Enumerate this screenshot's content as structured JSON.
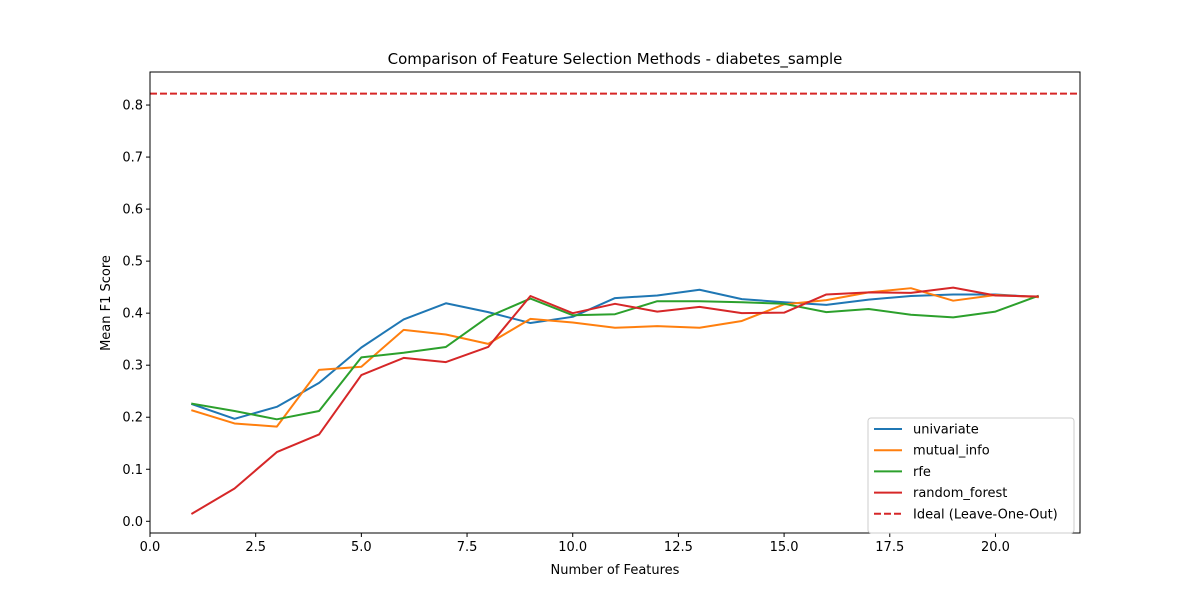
{
  "chart_data": {
    "type": "line",
    "title": "Comparison of Feature Selection Methods - diabetes_sample",
    "xlabel": "Number of Features",
    "ylabel": "Mean F1 Score",
    "xlim": [
      0.0,
      22.0
    ],
    "ylim": [
      -0.0225,
      0.8635
    ],
    "xticks": [
      0.0,
      2.5,
      5.0,
      7.5,
      10.0,
      12.5,
      15.0,
      17.5,
      20.0
    ],
    "xtick_labels": [
      "0.0",
      "2.5",
      "5.0",
      "7.5",
      "10.0",
      "12.5",
      "15.0",
      "17.5",
      "20.0"
    ],
    "yticks": [
      0.0,
      0.1,
      0.2,
      0.3,
      0.4,
      0.5,
      0.6,
      0.7,
      0.8
    ],
    "ytick_labels": [
      "0.0",
      "0.1",
      "0.2",
      "0.3",
      "0.4",
      "0.5",
      "0.6",
      "0.7",
      "0.8"
    ],
    "grid": false,
    "legend_position": "lower-right",
    "x": [
      1,
      2,
      3,
      4,
      5,
      6,
      7,
      8,
      9,
      10,
      11,
      12,
      13,
      14,
      15,
      16,
      17,
      18,
      19,
      20,
      21
    ],
    "series": [
      {
        "name": "univariate",
        "color": "#1f77b4",
        "values": [
          0.225,
          0.197,
          0.22,
          0.266,
          0.334,
          0.388,
          0.419,
          0.402,
          0.381,
          0.393,
          0.429,
          0.434,
          0.445,
          0.427,
          0.421,
          0.416,
          0.426,
          0.433,
          0.436,
          0.436,
          0.431
        ]
      },
      {
        "name": "mutual_info",
        "color": "#ff7f0e",
        "values": [
          0.213,
          0.188,
          0.182,
          0.291,
          0.297,
          0.368,
          0.359,
          0.341,
          0.389,
          0.382,
          0.372,
          0.375,
          0.372,
          0.385,
          0.417,
          0.425,
          0.44,
          0.448,
          0.424,
          0.435,
          0.431
        ]
      },
      {
        "name": "rfe",
        "color": "#2ca02c",
        "values": [
          0.226,
          0.212,
          0.196,
          0.212,
          0.315,
          0.324,
          0.335,
          0.393,
          0.428,
          0.396,
          0.398,
          0.423,
          0.423,
          0.421,
          0.418,
          0.402,
          0.408,
          0.397,
          0.392,
          0.403,
          0.433
        ]
      },
      {
        "name": "random_forest",
        "color": "#d62728",
        "values": [
          0.015,
          0.063,
          0.133,
          0.167,
          0.281,
          0.314,
          0.306,
          0.335,
          0.433,
          0.4,
          0.418,
          0.403,
          0.412,
          0.4,
          0.401,
          0.436,
          0.44,
          0.439,
          0.449,
          0.434,
          0.432
        ]
      }
    ],
    "reference_line": {
      "name": "Ideal (Leave-One-Out)",
      "color": "#d62728",
      "y": 0.822,
      "style": "dashed"
    }
  }
}
